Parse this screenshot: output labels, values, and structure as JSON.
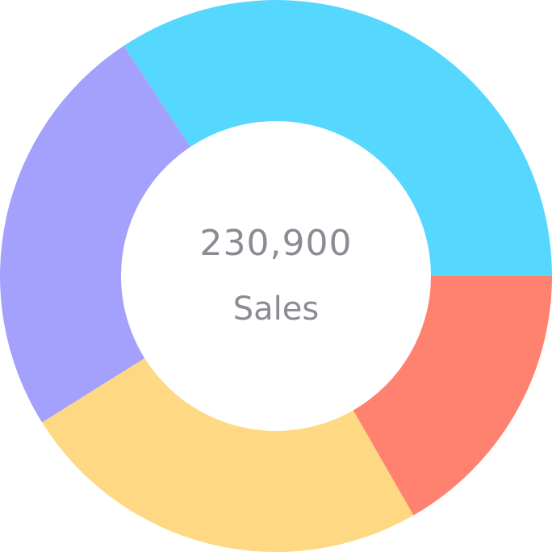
{
  "chart_data": {
    "type": "pie",
    "variant": "donut",
    "title": "",
    "center_value": "230,900",
    "center_label": "Sales",
    "legend": "none",
    "segments": [
      {
        "value": 0.343,
        "color": "#56d8fe"
      },
      {
        "value": 0.167,
        "color": "#ff8270"
      },
      {
        "value": 0.244,
        "color": "#fed883"
      },
      {
        "value": 0.246,
        "color": "#a3a1fb"
      }
    ]
  }
}
